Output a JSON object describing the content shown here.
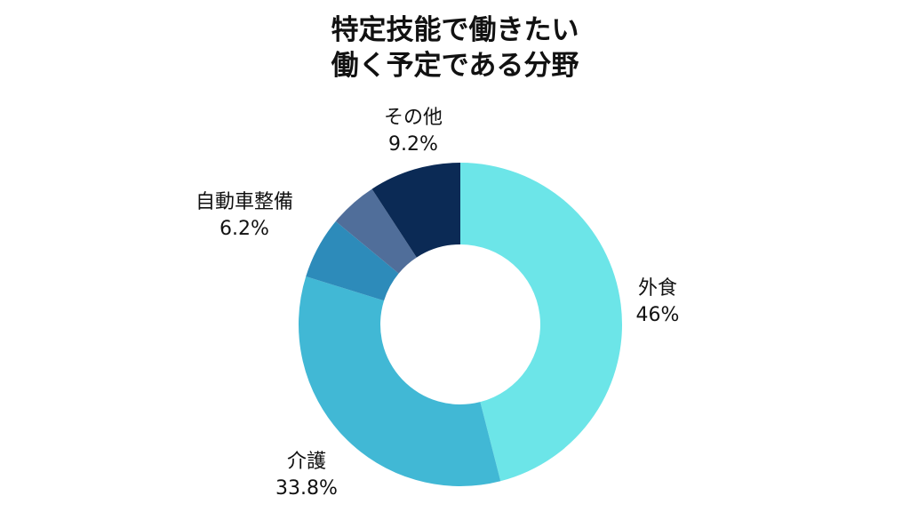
{
  "chart_data": {
    "type": "pie",
    "style": "donut",
    "title": [
      "特定技能で働きたい",
      "働く予定である分野"
    ],
    "slices": [
      {
        "label": "外食",
        "value": 46,
        "value_label": "46%",
        "color": "#6ce5e8"
      },
      {
        "label": "介護",
        "value": 33.8,
        "value_label": "33.8%",
        "color": "#41b8d5"
      },
      {
        "label": "自動車整備",
        "value": 6.2,
        "value_label": "6.2%",
        "color": "#2d8bba"
      },
      {
        "label": "",
        "value": 4.8,
        "value_label": "",
        "color": "#506e9a"
      },
      {
        "label": "その他",
        "value": 9.2,
        "value_label": "9.2%",
        "color": "#0b2a55"
      }
    ],
    "start_angle": "top",
    "direction": "clockwise"
  }
}
